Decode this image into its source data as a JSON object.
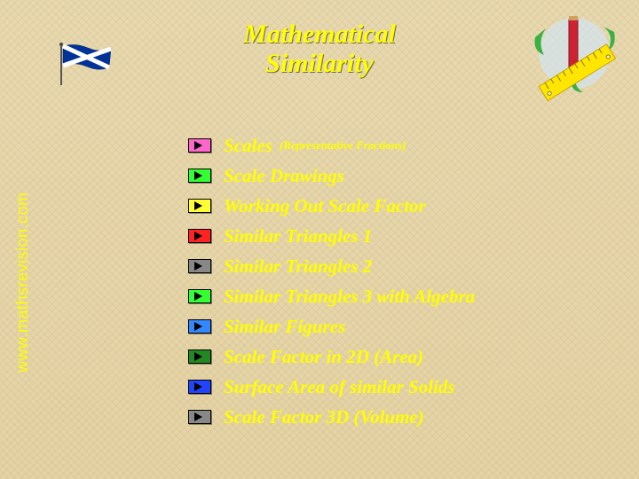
{
  "title_line1": "Mathematical",
  "title_line2": "Similarity",
  "side_url": "www.mathsrevision.com",
  "colors": {
    "text": "#ffff00",
    "background": "#e8d9b0",
    "title_shadow": "rgba(0,0,0,0.5)"
  },
  "flag": {
    "bg": "#003399",
    "cross": "#ffffff",
    "pole": "#555555"
  },
  "ruler_art": {
    "ruler_color": "#ffe600",
    "pencil_body": "#cc2233",
    "pencil_tip": "#f0c070",
    "leaf": "#3cb043",
    "globe": "#cfe8ff"
  },
  "menu": [
    {
      "bullet_color": "#ff66cc",
      "label": "Scales",
      "sublabel": "(Representative Fractions)"
    },
    {
      "bullet_color": "#33ff33",
      "label": "Scale Drawings"
    },
    {
      "bullet_color": "#ffff33",
      "label": "Working Out Scale Factor"
    },
    {
      "bullet_color": "#ff2222",
      "label": "Similar Triangles 1"
    },
    {
      "bullet_color": "#888888",
      "label": "Similar Triangles 2"
    },
    {
      "bullet_color": "#33ff33",
      "label": "Similar Triangles 3 with Algebra"
    },
    {
      "bullet_color": "#3388ff",
      "label": "Similar Figures"
    },
    {
      "bullet_color": "#228822",
      "label": "Scale Factor in 2D (Area)"
    },
    {
      "bullet_color": "#2244ff",
      "label": "Surface Area of similar Solids"
    },
    {
      "bullet_color": "#888888",
      "label": "Scale Factor 3D (Volume)"
    }
  ]
}
